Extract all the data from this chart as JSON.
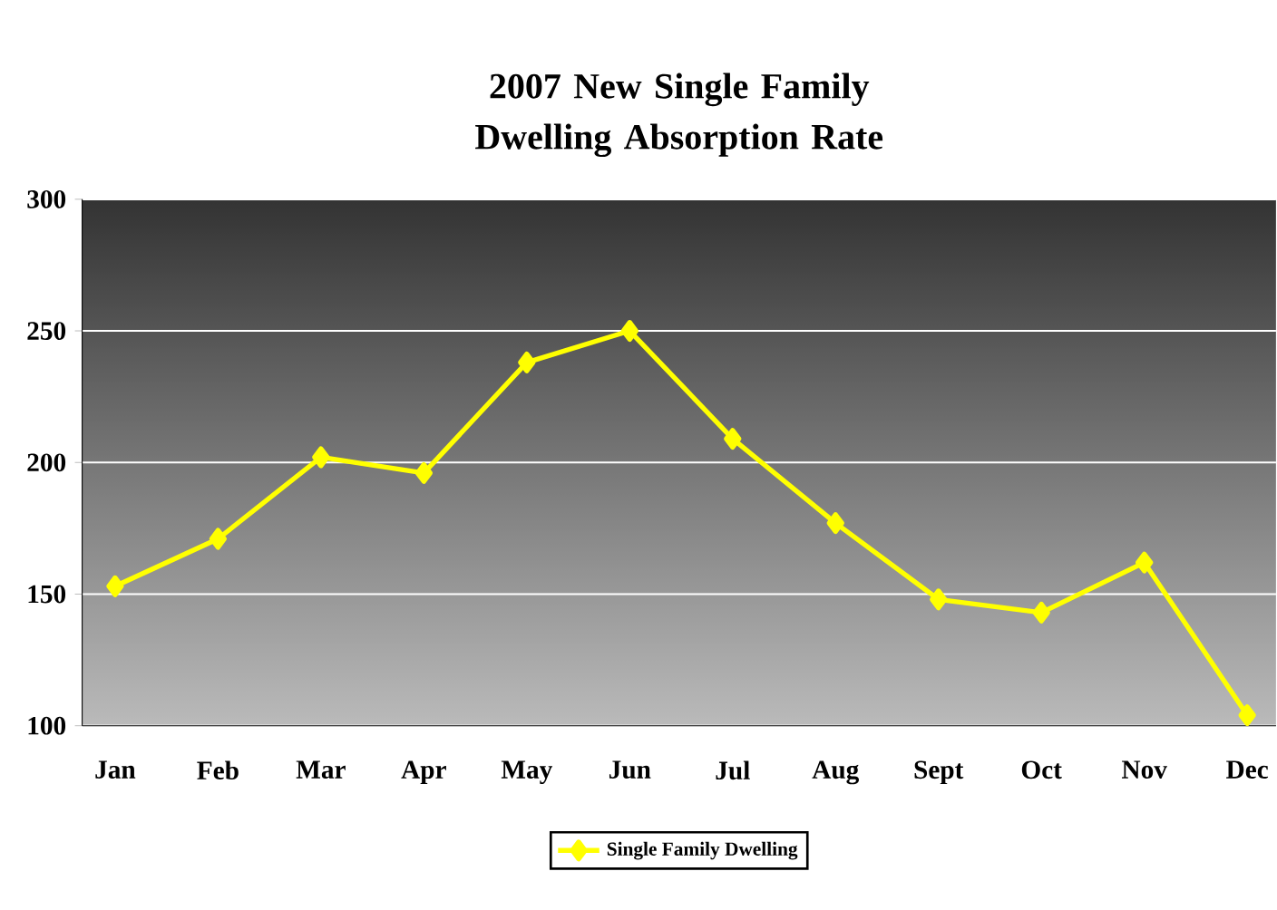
{
  "chart_data": {
    "type": "line",
    "title": "2007 New Single Family Dwelling Absorption Rate",
    "categories": [
      "Jan",
      "Feb",
      "Mar",
      "Apr",
      "May",
      "Jun",
      "Jul",
      "Aug",
      "Sept",
      "Oct",
      "Nov",
      "Dec"
    ],
    "series": [
      {
        "name": "Single Family Dwelling",
        "color": "#ffff00",
        "values": [
          153,
          171,
          202,
          196,
          238,
          250,
          209,
          177,
          148,
          143,
          162,
          104
        ]
      }
    ],
    "ylim": [
      100,
      300
    ],
    "yticks": [
      100,
      150,
      200,
      250,
      300
    ],
    "grid": "y",
    "legend": "bottom",
    "marker": "diamond",
    "line_style": "solid"
  }
}
